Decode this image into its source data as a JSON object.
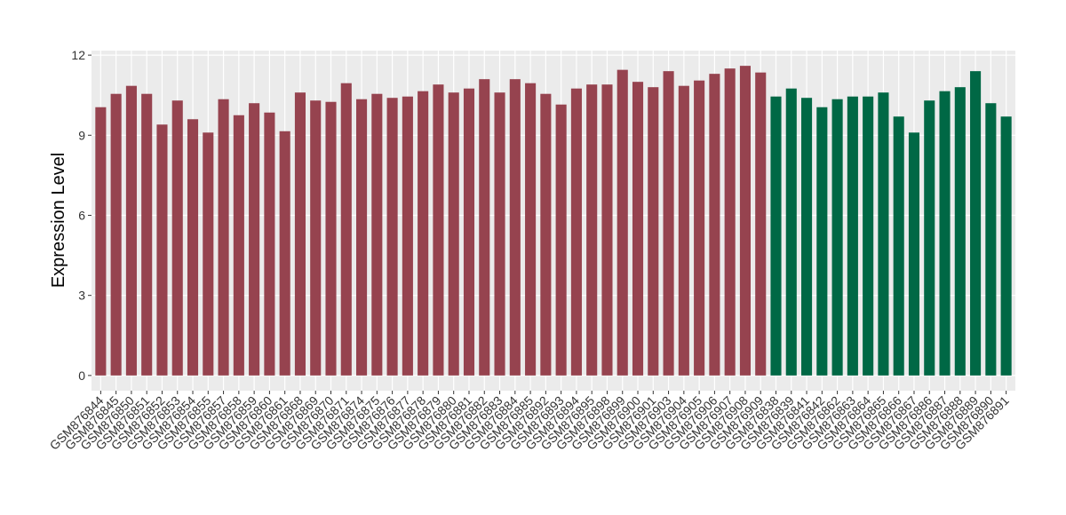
{
  "chart_data": {
    "type": "bar",
    "ylabel": "Expression Level",
    "categories": [
      "GSM876844",
      "GSM876845",
      "GSM876850",
      "GSM876851",
      "GSM876852",
      "GSM876853",
      "GSM876854",
      "GSM876855",
      "GSM876857",
      "GSM876858",
      "GSM876859",
      "GSM876860",
      "GSM876861",
      "GSM876868",
      "GSM876869",
      "GSM876870",
      "GSM876871",
      "GSM876874",
      "GSM876875",
      "GSM876876",
      "GSM876877",
      "GSM876878",
      "GSM876879",
      "GSM876880",
      "GSM876881",
      "GSM876882",
      "GSM876883",
      "GSM876884",
      "GSM876885",
      "GSM876892",
      "GSM876893",
      "GSM876894",
      "GSM876895",
      "GSM876898",
      "GSM876899",
      "GSM876900",
      "GSM876901",
      "GSM876903",
      "GSM876904",
      "GSM876905",
      "GSM876906",
      "GSM876907",
      "GSM876908",
      "GSM876909",
      "GSM876838",
      "GSM876839",
      "GSM876841",
      "GSM876842",
      "GSM876862",
      "GSM876863",
      "GSM876864",
      "GSM876865",
      "GSM876866",
      "GSM876867",
      "GSM876886",
      "GSM876887",
      "GSM876888",
      "GSM876889",
      "GSM876890",
      "GSM876891"
    ],
    "values": [
      10.05,
      10.55,
      10.85,
      10.55,
      9.4,
      10.3,
      9.6,
      9.1,
      10.35,
      9.75,
      10.2,
      9.85,
      9.15,
      10.6,
      10.3,
      10.25,
      10.95,
      10.35,
      10.55,
      10.4,
      10.45,
      10.65,
      10.9,
      10.6,
      10.75,
      11.1,
      10.6,
      11.1,
      10.95,
      10.55,
      10.15,
      10.75,
      10.9,
      10.9,
      11.45,
      11.0,
      10.8,
      11.4,
      10.85,
      11.05,
      11.3,
      11.5,
      11.6,
      11.35,
      10.45,
      10.75,
      10.4,
      10.05,
      10.35,
      10.45,
      10.45,
      10.6,
      9.7,
      9.1,
      10.3,
      10.65,
      10.8,
      11.4,
      10.2,
      9.7
    ],
    "colors": [
      "#96434f",
      "#96434f",
      "#96434f",
      "#96434f",
      "#96434f",
      "#96434f",
      "#96434f",
      "#96434f",
      "#96434f",
      "#96434f",
      "#96434f",
      "#96434f",
      "#96434f",
      "#96434f",
      "#96434f",
      "#96434f",
      "#96434f",
      "#96434f",
      "#96434f",
      "#96434f",
      "#96434f",
      "#96434f",
      "#96434f",
      "#96434f",
      "#96434f",
      "#96434f",
      "#96434f",
      "#96434f",
      "#96434f",
      "#96434f",
      "#96434f",
      "#96434f",
      "#96434f",
      "#96434f",
      "#96434f",
      "#96434f",
      "#96434f",
      "#96434f",
      "#96434f",
      "#96434f",
      "#96434f",
      "#96434f",
      "#96434f",
      "#96434f",
      "#006845",
      "#006845",
      "#006845",
      "#006845",
      "#006845",
      "#006845",
      "#006845",
      "#006845",
      "#006845",
      "#006845",
      "#006845",
      "#006845",
      "#006845",
      "#006845",
      "#006845",
      "#006845"
    ],
    "ylim": [
      -0.57,
      12.17
    ],
    "yticks": [
      0,
      3,
      6,
      9,
      12
    ],
    "grid": true
  }
}
